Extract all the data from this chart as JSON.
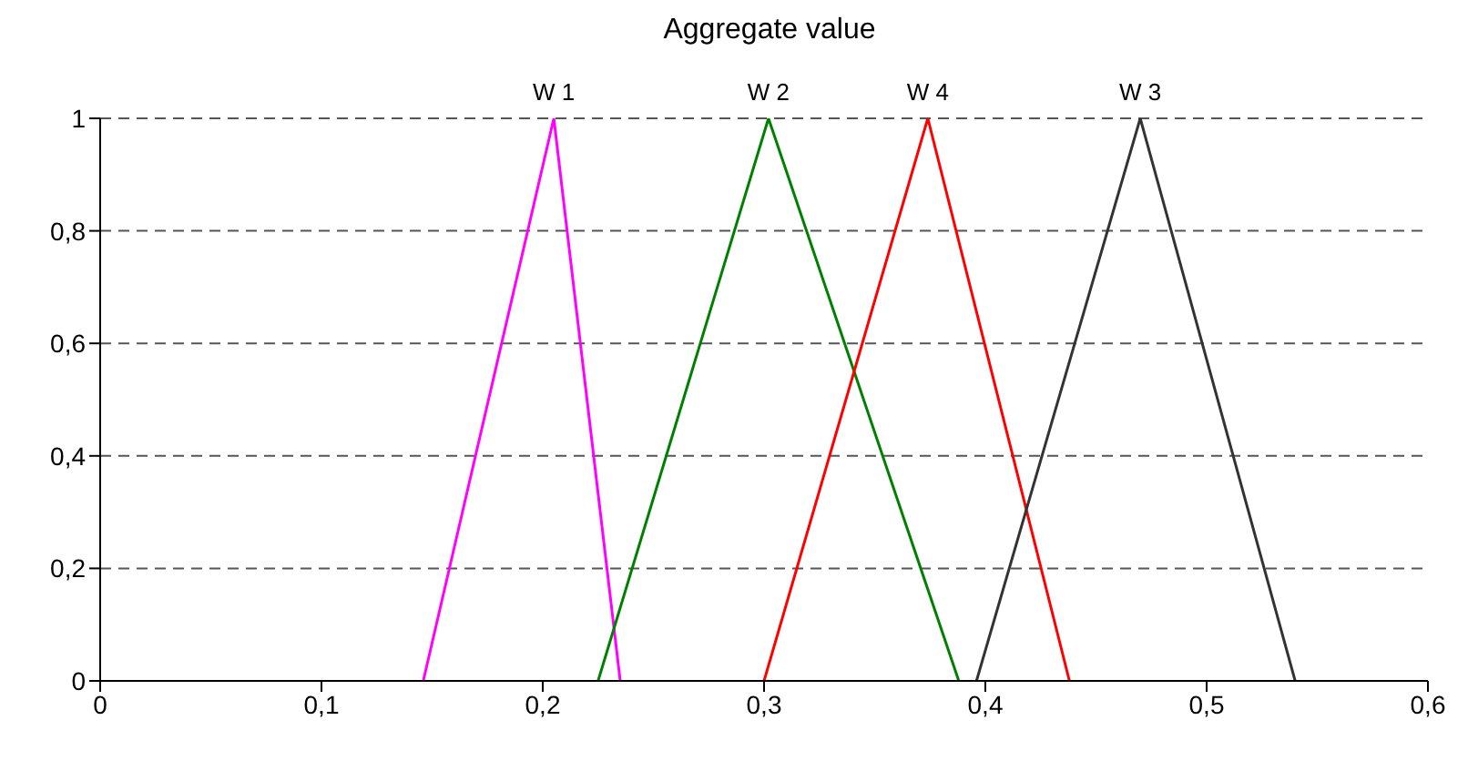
{
  "chart_data": {
    "type": "line",
    "title": "Aggregate value",
    "grid": "y",
    "legend": false,
    "line_style": "solid",
    "marker": "none",
    "xlim": [
      0,
      0.6
    ],
    "xticks": [
      0,
      {
        "value": 0.1,
        "label": "0,1"
      },
      {
        "value": 0.2,
        "label": "0,2"
      },
      {
        "value": 0.3,
        "label": "0,3"
      },
      {
        "value": 0.4,
        "label": "0,4"
      },
      {
        "value": 0.5,
        "label": "0,5"
      },
      {
        "value": 0.6,
        "label": "0,6"
      }
    ],
    "ylim": [
      0,
      1
    ],
    "yticks": [
      0,
      {
        "value": 0.2,
        "label": "0,2"
      },
      {
        "value": 0.4,
        "label": "0,4"
      },
      {
        "value": 0.6,
        "label": "0,6"
      },
      {
        "value": 0.8,
        "label": "0,8"
      },
      1
    ],
    "series": [
      {
        "name": "W 1",
        "color": "#ff00ff",
        "x": [
          0.146,
          0.205,
          0.235
        ],
        "values": [
          0,
          1,
          0
        ]
      },
      {
        "name": "W 2",
        "color": "#008000",
        "x": [
          0.225,
          0.302,
          0.388
        ],
        "values": [
          0,
          1,
          0
        ]
      },
      {
        "name": "W 4",
        "color": "#ff0000",
        "x": [
          0.3,
          0.374,
          0.438
        ],
        "values": [
          0,
          1,
          0
        ]
      },
      {
        "name": "W 3",
        "color": "#333333",
        "x": [
          0.396,
          0.47,
          0.54
        ],
        "values": [
          0,
          1,
          0
        ]
      }
    ]
  }
}
